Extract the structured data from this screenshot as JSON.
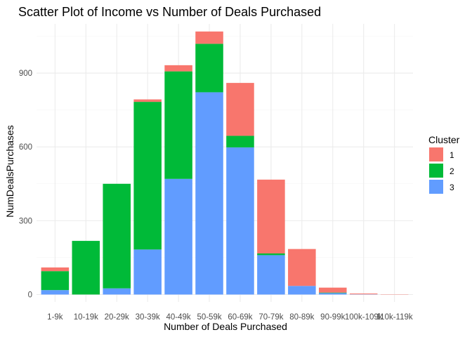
{
  "chart_data": {
    "type": "bar",
    "stacked": true,
    "title": "Scatter Plot of Income vs Number of Deals Purchased",
    "xlabel": "Number of Deals Purchased",
    "ylabel": "NumDealsPurchases",
    "categories": [
      "1-9k",
      "10-19k",
      "20-29k",
      "30-39k",
      "40-49k",
      "50-59k",
      "60-69k",
      "70-79k",
      "80-89k",
      "90-99k",
      "100k-109k",
      "110k-119k"
    ],
    "series": [
      {
        "name": "1",
        "color": "#F8766D",
        "values": [
          15,
          0,
          0,
          10,
          25,
          50,
          215,
          300,
          150,
          20,
          3,
          1
        ]
      },
      {
        "name": "2",
        "color": "#00BA38",
        "values": [
          77,
          218,
          425,
          600,
          437,
          197,
          47,
          7,
          0,
          2,
          0,
          0
        ]
      },
      {
        "name": "3",
        "color": "#619CFF",
        "values": [
          18,
          0,
          25,
          183,
          470,
          822,
          598,
          160,
          35,
          6,
          1,
          0
        ]
      }
    ],
    "ylim": [
      -30,
      1100
    ],
    "yticks": [
      0,
      300,
      600,
      900
    ],
    "grid": true,
    "legend": {
      "title": "Cluster",
      "position": "right"
    }
  }
}
